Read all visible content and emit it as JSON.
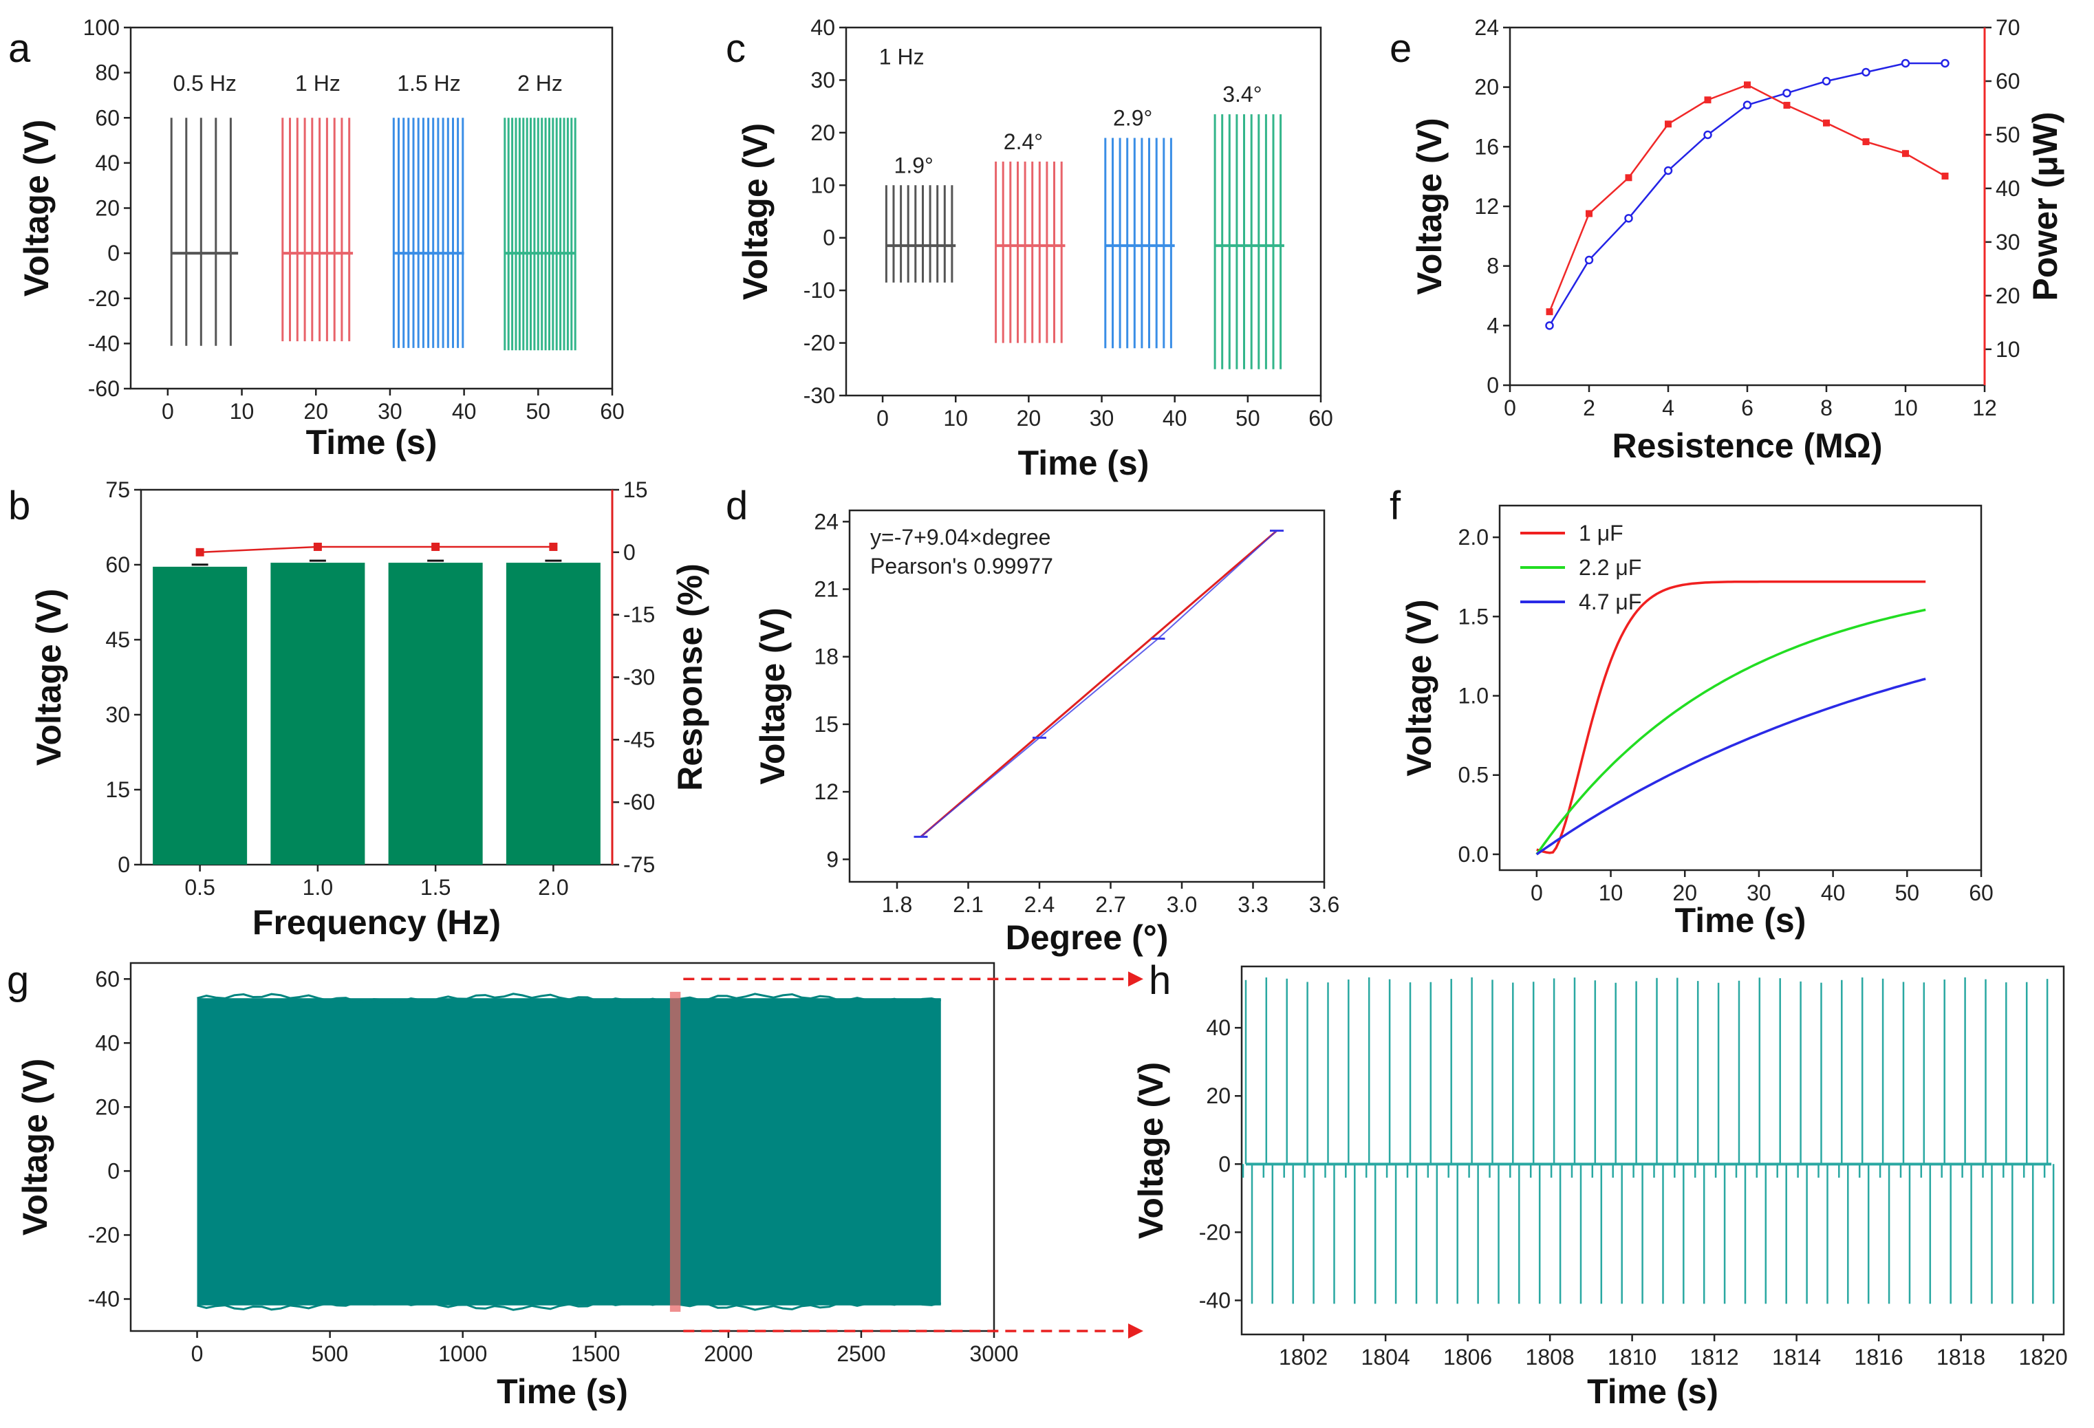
{
  "chart_data": [
    {
      "id": "a",
      "panel_label": "a",
      "type": "line",
      "xlabel": "Time (s)",
      "ylabel": "Voltage (V)",
      "xlim": [
        -5,
        60
      ],
      "ylim": [
        -60,
        100
      ],
      "xticks": [
        0,
        10,
        20,
        30,
        40,
        50,
        60
      ],
      "yticks": [
        -60,
        -40,
        -20,
        0,
        20,
        40,
        60,
        80,
        100
      ],
      "series": [
        {
          "name": "0.5 Hz",
          "color": "#555555",
          "t_start": 0.5,
          "t_end": 9.5,
          "freq": 0.5,
          "max": 60,
          "min": -41
        },
        {
          "name": "1 Hz",
          "color": "#e8636a",
          "t_start": 15.5,
          "t_end": 25,
          "freq": 1,
          "max": 60,
          "min": -39
        },
        {
          "name": "1.5 Hz",
          "color": "#3a8ee6",
          "t_start": 30.5,
          "t_end": 40,
          "freq": 1.5,
          "max": 60,
          "min": -42
        },
        {
          "name": "2 Hz",
          "color": "#33b58a",
          "t_start": 45.5,
          "t_end": 55,
          "freq": 2,
          "max": 60,
          "min": -43
        }
      ]
    },
    {
      "id": "b",
      "panel_label": "b",
      "type": "bar",
      "xlabel": "Frequency (Hz)",
      "ylabel": "Voltage (V)",
      "y2label": "Response (%)",
      "categories": [
        "0.5",
        "1.0",
        "1.5",
        "2.0"
      ],
      "ylim": [
        0,
        75
      ],
      "yticks": [
        0,
        15,
        30,
        45,
        60,
        75
      ],
      "y2lim": [
        -75,
        15
      ],
      "y2ticks": [
        -75,
        -60,
        -45,
        -30,
        -15,
        0,
        15
      ],
      "values": [
        59.6,
        60.4,
        60.4,
        60.4
      ],
      "response": [
        0,
        1.3,
        1.3,
        1.3
      ],
      "bar_color": "#00875a",
      "line_color": "#e02020"
    },
    {
      "id": "c",
      "panel_label": "c",
      "type": "line",
      "xlabel": "Time (s)",
      "ylabel": "Voltage (V)",
      "xlim": [
        -5,
        60
      ],
      "ylim": [
        -30,
        40
      ],
      "xticks": [
        0,
        10,
        20,
        30,
        40,
        50,
        60
      ],
      "yticks": [
        -30,
        -20,
        -10,
        0,
        10,
        20,
        30,
        40
      ],
      "annotation": "1 Hz",
      "series": [
        {
          "name": "1.9°",
          "color": "#555555",
          "t_start": 0.5,
          "t_end": 10,
          "freq": 1,
          "max": 10,
          "min": -8.5
        },
        {
          "name": "2.4°",
          "color": "#e8636a",
          "t_start": 15.5,
          "t_end": 25,
          "freq": 1,
          "max": 14.5,
          "min": -20
        },
        {
          "name": "2.9°",
          "color": "#3a8ee6",
          "t_start": 30.5,
          "t_end": 40,
          "freq": 1,
          "max": 19,
          "min": -21
        },
        {
          "name": "3.4°",
          "color": "#33b58a",
          "t_start": 45.5,
          "t_end": 55,
          "freq": 1,
          "max": 23.5,
          "min": -25
        }
      ]
    },
    {
      "id": "d",
      "panel_label": "d",
      "type": "line",
      "xlabel": "Degree (°)",
      "ylabel": "Voltage (V)",
      "xlim": [
        1.6,
        3.6
      ],
      "ylim": [
        8,
        24.5
      ],
      "xticks": [
        1.8,
        2.1,
        2.4,
        2.7,
        3.0,
        3.3,
        3.6
      ],
      "yticks": [
        9,
        12,
        15,
        18,
        21,
        24
      ],
      "fit_text": "y=-7+9.04×degree",
      "pearson_text": "Pearson's 0.99977",
      "x": [
        1.9,
        2.4,
        2.9,
        3.4
      ],
      "y": [
        10,
        14.4,
        18.8,
        23.6
      ],
      "fit_color": "#e02020",
      "data_color": "#3a3ae6"
    },
    {
      "id": "e",
      "panel_label": "e",
      "type": "line",
      "xlabel": "Resistence (MΩ)",
      "ylabel": "Voltage (V)",
      "y2label": "Power (μW)",
      "xlim": [
        0,
        12
      ],
      "ylim": [
        0,
        24
      ],
      "y2lim": [
        3.3,
        70
      ],
      "xticks": [
        0,
        2,
        4,
        6,
        8,
        10,
        12
      ],
      "yticks": [
        0,
        4,
        8,
        12,
        16,
        20,
        24
      ],
      "y2ticks": [
        10,
        20,
        30,
        40,
        50,
        60,
        70
      ],
      "x": [
        1,
        2,
        3,
        4,
        5,
        6,
        7,
        8,
        9,
        10,
        11
      ],
      "voltage": [
        4,
        8.4,
        11.2,
        14.4,
        16.8,
        18.8,
        19.6,
        20.4,
        21,
        21.6,
        21.6
      ],
      "power": [
        17,
        35.3,
        42,
        52,
        56.5,
        59.3,
        55.5,
        52.2,
        48.7,
        46.5,
        42.3
      ],
      "voltage_color": "#2323e6",
      "power_color": "#f02828"
    },
    {
      "id": "f",
      "panel_label": "f",
      "type": "line",
      "xlabel": "Time (s)",
      "ylabel": "Voltage (V)",
      "xlim": [
        -5,
        60
      ],
      "ylim": [
        -0.1,
        2.2
      ],
      "xticks": [
        0,
        10,
        20,
        30,
        40,
        50,
        60
      ],
      "yticks": [
        0.0,
        0.5,
        1.0,
        1.5,
        2.0
      ],
      "t_end": 52.5,
      "series": [
        {
          "name": "1 μF",
          "color": "#f02020",
          "vmax": 1.72,
          "tau": 7,
          "delay": 2
        },
        {
          "name": "2.2 μF",
          "color": "#22dd22",
          "vmax": 1.8,
          "tau": 27,
          "delay": 0
        },
        {
          "name": "4.7 μF",
          "color": "#2a2ae6",
          "vmax": 1.8,
          "tau": 55,
          "delay": 0
        }
      ]
    },
    {
      "id": "g",
      "panel_label": "g",
      "type": "area",
      "xlabel": "Time (s)",
      "ylabel": "Voltage (V)",
      "xlim": [
        -250,
        3000
      ],
      "ylim": [
        -50,
        65
      ],
      "xticks": [
        0,
        500,
        1000,
        1500,
        2000,
        2500,
        3000
      ],
      "yticks": [
        -40,
        -20,
        0,
        20,
        40,
        60
      ],
      "t_start": 0,
      "t_end": 2800,
      "max": 54,
      "min": -42,
      "highlight": [
        1780,
        1820
      ],
      "fill_color": "#00857f",
      "highlight_color": "#e86060"
    },
    {
      "id": "h",
      "panel_label": "h",
      "type": "line",
      "xlabel": "Time (s)",
      "ylabel": "Voltage (V)",
      "xlim": [
        1800.5,
        1820.5
      ],
      "ylim": [
        -50,
        58
      ],
      "xticks": [
        1802,
        1804,
        1806,
        1808,
        1810,
        1812,
        1814,
        1816,
        1818,
        1820
      ],
      "yticks": [
        -40,
        -20,
        0,
        20,
        40
      ],
      "t_start": 1800.6,
      "t_end": 1820.2,
      "freq": 2,
      "max": 54,
      "min": -41,
      "color": "#2aa8a2"
    }
  ]
}
